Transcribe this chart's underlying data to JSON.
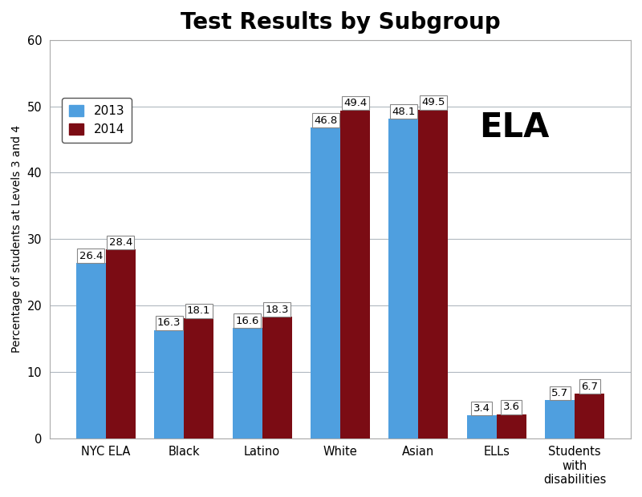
{
  "title": "Test Results by Subgroup",
  "ylabel": "Percentage of students at Levels 3 and 4",
  "categories": [
    "NYC ELA",
    "Black",
    "Latino",
    "White",
    "Asian",
    "ELLs",
    "Students\nwith\ndisabilities"
  ],
  "values_2013": [
    26.4,
    16.3,
    16.6,
    46.8,
    48.1,
    3.4,
    5.7
  ],
  "values_2014": [
    28.4,
    18.1,
    18.3,
    49.4,
    49.5,
    3.6,
    6.7
  ],
  "color_2013": "#4f9fdf",
  "color_2014": "#7B0C14",
  "ylim": [
    0,
    60
  ],
  "yticks": [
    0,
    10,
    20,
    30,
    40,
    50,
    60
  ],
  "legend_labels": [
    "2013",
    "2014"
  ],
  "ela_label": "ELA",
  "bar_width": 0.38,
  "title_fontsize": 20,
  "label_fontsize": 10,
  "tick_fontsize": 10.5,
  "annotation_fontsize": 9.5,
  "ela_fontsize": 30,
  "background_color": "#ffffff",
  "grid_color": "#b0b8c0"
}
